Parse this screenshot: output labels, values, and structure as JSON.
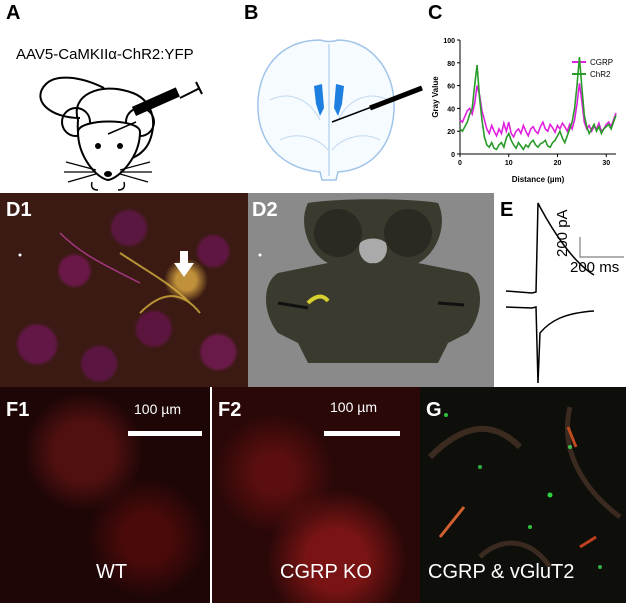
{
  "panels": {
    "A": {
      "label": "A",
      "virus": "AAV5-CaMKIIα-ChR2:YFP"
    },
    "B": {
      "label": "B"
    },
    "C": {
      "label": "C"
    },
    "D1": {
      "label": "D1"
    },
    "D2": {
      "label": "D2"
    },
    "E": {
      "label": "E",
      "scale_y": "200 pA",
      "scale_x": "200 ms"
    },
    "F1": {
      "label": "F1",
      "scalebar": "100 µm",
      "caption": "WT"
    },
    "F2": {
      "label": "F2",
      "scalebar": "100 µm",
      "caption": "CGRP KO"
    },
    "G": {
      "label": "G",
      "caption": "CGRP & vGluT2"
    }
  },
  "chart_data": {
    "type": "line",
    "xlabel": "Distance (µm)",
    "ylabel": "Gray Value",
    "xlim": [
      0,
      32
    ],
    "ylim": [
      0,
      100
    ],
    "xticks": [
      0,
      10,
      20,
      30
    ],
    "yticks": [
      0,
      20,
      40,
      60,
      80,
      100
    ],
    "legend_position": "top-right",
    "series": [
      {
        "name": "CGRP",
        "color": "#e020e0",
        "x": [
          0,
          0.5,
          1,
          1.5,
          2,
          2.5,
          3,
          3.5,
          4,
          4.5,
          5,
          5.5,
          6,
          6.5,
          7,
          7.5,
          8,
          8.5,
          9,
          9.5,
          10,
          10.5,
          11,
          11.5,
          12,
          12.5,
          13,
          13.5,
          14,
          14.5,
          15,
          15.5,
          16,
          16.5,
          17,
          17.5,
          18,
          18.5,
          19,
          19.5,
          20,
          20.5,
          21,
          21.5,
          22,
          22.5,
          23,
          23.5,
          24,
          24.5,
          25,
          25.5,
          26,
          26.5,
          27,
          27.5,
          28,
          28.5,
          29,
          29.5,
          30,
          30.5,
          31,
          31.5,
          32
        ],
        "y": [
          30,
          28,
          33,
          38,
          40,
          35,
          44,
          60,
          52,
          38,
          30,
          22,
          18,
          25,
          20,
          16,
          22,
          18,
          27,
          20,
          28,
          18,
          15,
          20,
          22,
          18,
          25,
          20,
          16,
          22,
          24,
          20,
          18,
          24,
          28,
          22,
          20,
          26,
          23,
          19,
          25,
          22,
          27,
          24,
          20,
          26,
          22,
          30,
          44,
          62,
          46,
          28,
          22,
          25,
          20,
          24,
          22,
          27,
          20,
          22,
          26,
          28,
          24,
          30,
          36
        ]
      },
      {
        "name": "ChR2",
        "color": "#2a9a2a",
        "x": [
          0,
          0.5,
          1,
          1.5,
          2,
          2.5,
          3,
          3.5,
          4,
          4.5,
          5,
          5.5,
          6,
          6.5,
          7,
          7.5,
          8,
          8.5,
          9,
          9.5,
          10,
          10.5,
          11,
          11.5,
          12,
          12.5,
          13,
          13.5,
          14,
          14.5,
          15,
          15.5,
          16,
          16.5,
          17,
          17.5,
          18,
          18.5,
          19,
          19.5,
          20,
          20.5,
          21,
          21.5,
          22,
          22.5,
          23,
          23.5,
          24,
          24.5,
          25,
          25.5,
          26,
          26.5,
          27,
          27.5,
          28,
          28.5,
          29,
          29.5,
          30,
          30.5,
          31,
          31.5,
          32
        ],
        "y": [
          22,
          20,
          24,
          28,
          35,
          40,
          60,
          78,
          50,
          30,
          15,
          8,
          6,
          10,
          5,
          4,
          8,
          10,
          6,
          14,
          18,
          12,
          8,
          5,
          10,
          7,
          4,
          8,
          6,
          10,
          12,
          8,
          6,
          9,
          10,
          12,
          7,
          6,
          10,
          12,
          16,
          20,
          14,
          10,
          16,
          22,
          28,
          40,
          60,
          85,
          58,
          34,
          24,
          18,
          22,
          26,
          20,
          24,
          18,
          22,
          24,
          26,
          22,
          28,
          34
        ]
      }
    ]
  }
}
